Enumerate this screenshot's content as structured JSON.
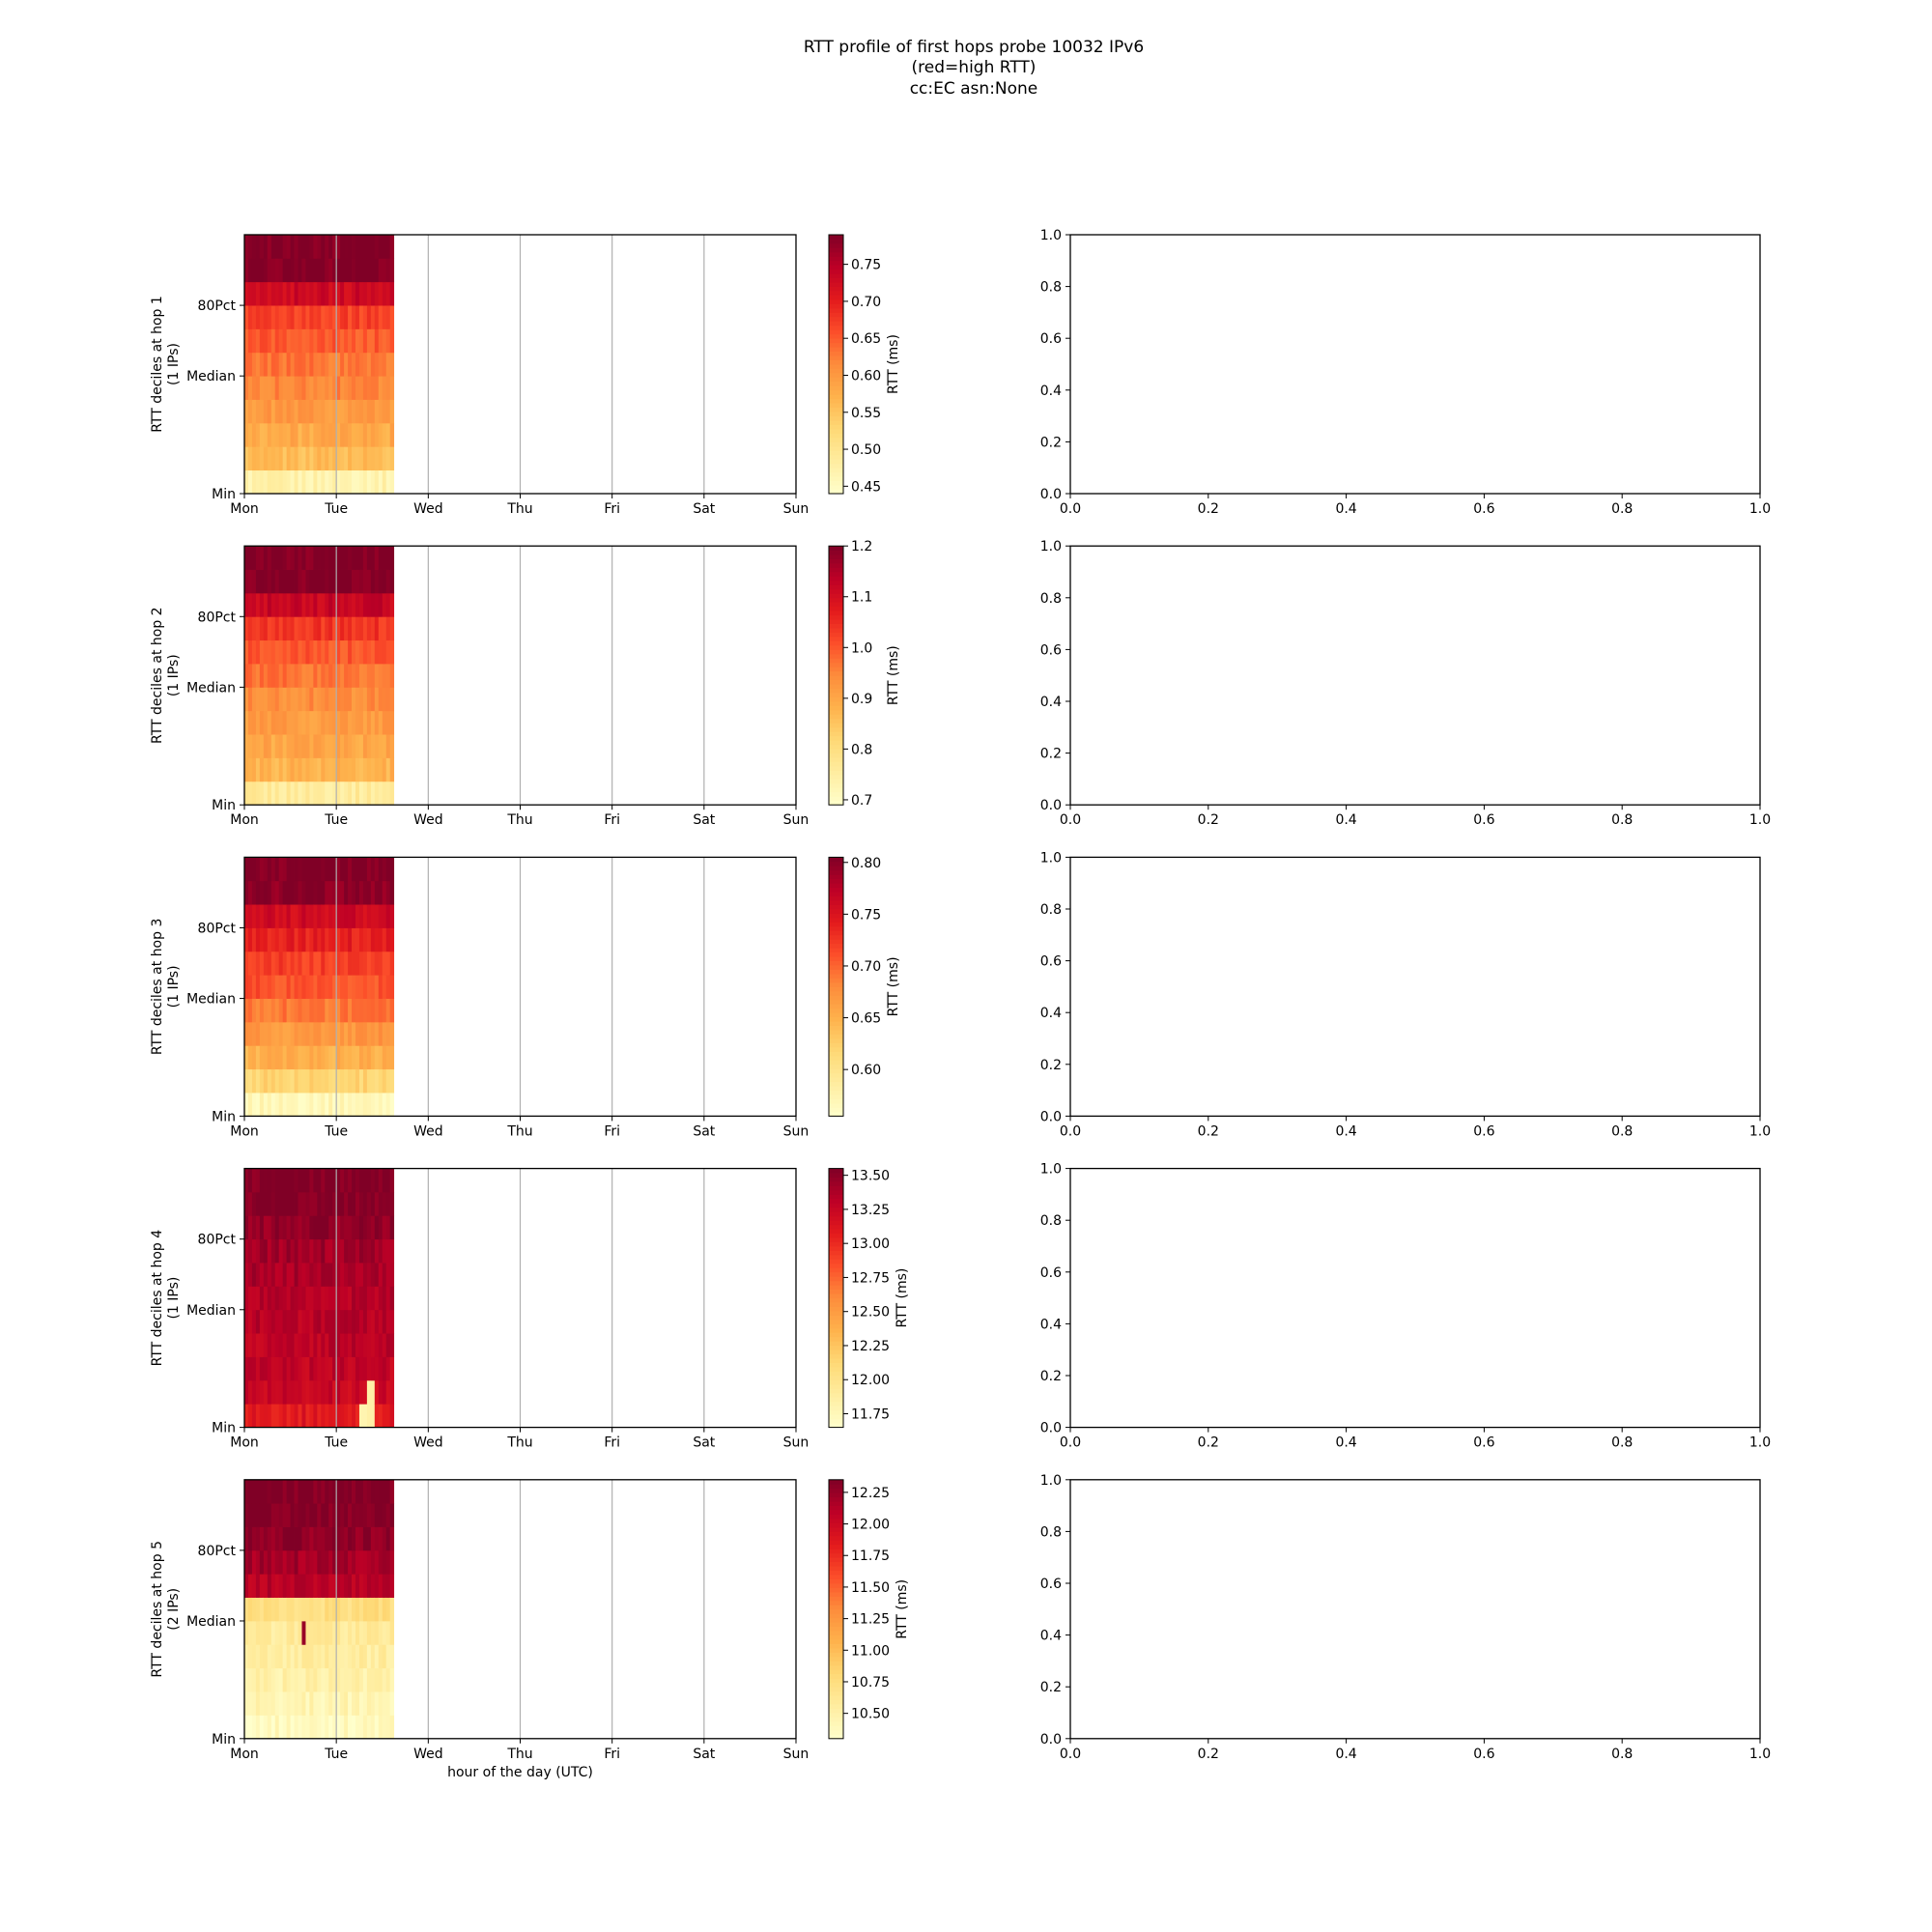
{
  "figure": {
    "title_lines": [
      "RTT profile of first hops probe 10032 IPv6",
      "(red=high RTT)",
      "cc:EC asn:None"
    ]
  },
  "x_tick_labels": [
    "Mon",
    "Tue",
    "Wed",
    "Thu",
    "Fri",
    "Sat",
    "Sun"
  ],
  "y_tick_labels": [
    "Min",
    "Median",
    "80Pct"
  ],
  "xlabel": "hour of the day (UTC)",
  "colorbar_label": "RTT (ms)",
  "empty_panel_ticks": [
    "0.0",
    "0.2",
    "0.4",
    "0.6",
    "0.8",
    "1.0"
  ],
  "colormap": [
    "#ffffcc",
    "#ffeda0",
    "#fed976",
    "#feb24c",
    "#fd8d3c",
    "#fc4e2a",
    "#e31a1c",
    "#bd0026",
    "#800026"
  ],
  "chart_data": [
    {
      "type": "heatmap",
      "hop": 1,
      "ylabel_lines": [
        "RTT deciles at hop 1",
        "(1 IPs)"
      ],
      "x_days_range": [
        0,
        6
      ],
      "data_x_extent_days": [
        0,
        1.625
      ],
      "decile_rows": 11,
      "vmin": 0.44,
      "vmax": 0.79,
      "colorbar_ticks": [
        "0.45",
        "0.50",
        "0.55",
        "0.60",
        "0.65",
        "0.70",
        "0.75"
      ],
      "decile_values_ms": [
        0.47,
        0.56,
        0.58,
        0.6,
        0.62,
        0.63,
        0.65,
        0.67,
        0.73,
        0.79,
        0.79
      ],
      "anomalies": []
    },
    {
      "type": "heatmap",
      "hop": 2,
      "ylabel_lines": [
        "RTT deciles at hop 2",
        "(1 IPs)"
      ],
      "x_days_range": [
        0,
        6
      ],
      "data_x_extent_days": [
        0,
        1.625
      ],
      "decile_rows": 11,
      "vmin": 0.69,
      "vmax": 1.2,
      "colorbar_ticks": [
        "0.7",
        "0.8",
        "0.9",
        "1.0",
        "1.1",
        "1.2"
      ],
      "decile_values_ms": [
        0.76,
        0.88,
        0.9,
        0.92,
        0.94,
        0.97,
        1.0,
        1.04,
        1.12,
        1.2,
        1.2
      ],
      "anomalies": []
    },
    {
      "type": "heatmap",
      "hop": 3,
      "ylabel_lines": [
        "RTT deciles at hop 3",
        "(1 IPs)"
      ],
      "x_days_range": [
        0,
        6
      ],
      "data_x_extent_days": [
        0,
        1.625
      ],
      "decile_rows": 11,
      "vmin": 0.555,
      "vmax": 0.805,
      "colorbar_ticks": [
        "0.60",
        "0.65",
        "0.70",
        "0.75",
        "0.80"
      ],
      "decile_values_ms": [
        0.57,
        0.62,
        0.65,
        0.67,
        0.69,
        0.71,
        0.72,
        0.74,
        0.76,
        0.8,
        0.805
      ],
      "anomalies": []
    },
    {
      "type": "heatmap",
      "hop": 4,
      "ylabel_lines": [
        "RTT deciles at hop 4",
        "(1 IPs)"
      ],
      "x_days_range": [
        0,
        6
      ],
      "data_x_extent_days": [
        0,
        1.625
      ],
      "decile_rows": 11,
      "vmin": 11.65,
      "vmax": 13.55,
      "colorbar_ticks": [
        "11.75",
        "12.00",
        "12.25",
        "12.50",
        "12.75",
        "13.00",
        "13.25",
        "13.50"
      ],
      "decile_values_ms": [
        13.1,
        13.25,
        13.28,
        13.3,
        13.32,
        13.35,
        13.38,
        13.42,
        13.48,
        13.55,
        13.55
      ],
      "anomalies": [
        {
          "day_start": 1.25,
          "day_end": 1.33,
          "rows": [
            0
          ],
          "value_ms": 11.8
        },
        {
          "day_start": 1.33,
          "day_end": 1.42,
          "rows": [
            0,
            1
          ],
          "value_ms": 11.85
        }
      ]
    },
    {
      "type": "heatmap",
      "hop": 5,
      "ylabel_lines": [
        "RTT deciles at hop 5",
        "(2 IPs)"
      ],
      "x_days_range": [
        0,
        6
      ],
      "data_x_extent_days": [
        0,
        1.625
      ],
      "decile_rows": 11,
      "vmin": 10.3,
      "vmax": 12.35,
      "colorbar_ticks": [
        "10.50",
        "10.75",
        "11.00",
        "11.25",
        "11.50",
        "11.75",
        "12.00",
        "12.25"
      ],
      "decile_values_ms": [
        10.38,
        10.45,
        10.5,
        10.55,
        10.58,
        10.75,
        12.1,
        12.2,
        12.28,
        12.35,
        12.35
      ],
      "anomalies": [
        {
          "day_start": 0.62,
          "day_end": 0.66,
          "rows": [
            4
          ],
          "value_ms": 12.25
        },
        {
          "day_start": 1.33,
          "day_end": 1.42,
          "rows": [
            5
          ],
          "value_ms": 10.8
        }
      ]
    }
  ],
  "empty_panels": [
    {
      "hop": 1,
      "xlim": [
        0.0,
        1.0
      ],
      "ylim": [
        0.0,
        1.0
      ]
    },
    {
      "hop": 2,
      "xlim": [
        0.0,
        1.0
      ],
      "ylim": [
        0.0,
        1.0
      ]
    },
    {
      "hop": 3,
      "xlim": [
        0.0,
        1.0
      ],
      "ylim": [
        0.0,
        1.0
      ]
    },
    {
      "hop": 4,
      "xlim": [
        0.0,
        1.0
      ],
      "ylim": [
        0.0,
        1.0
      ]
    },
    {
      "hop": 5,
      "xlim": [
        0.0,
        1.0
      ],
      "ylim": [
        0.0,
        1.0
      ]
    }
  ]
}
